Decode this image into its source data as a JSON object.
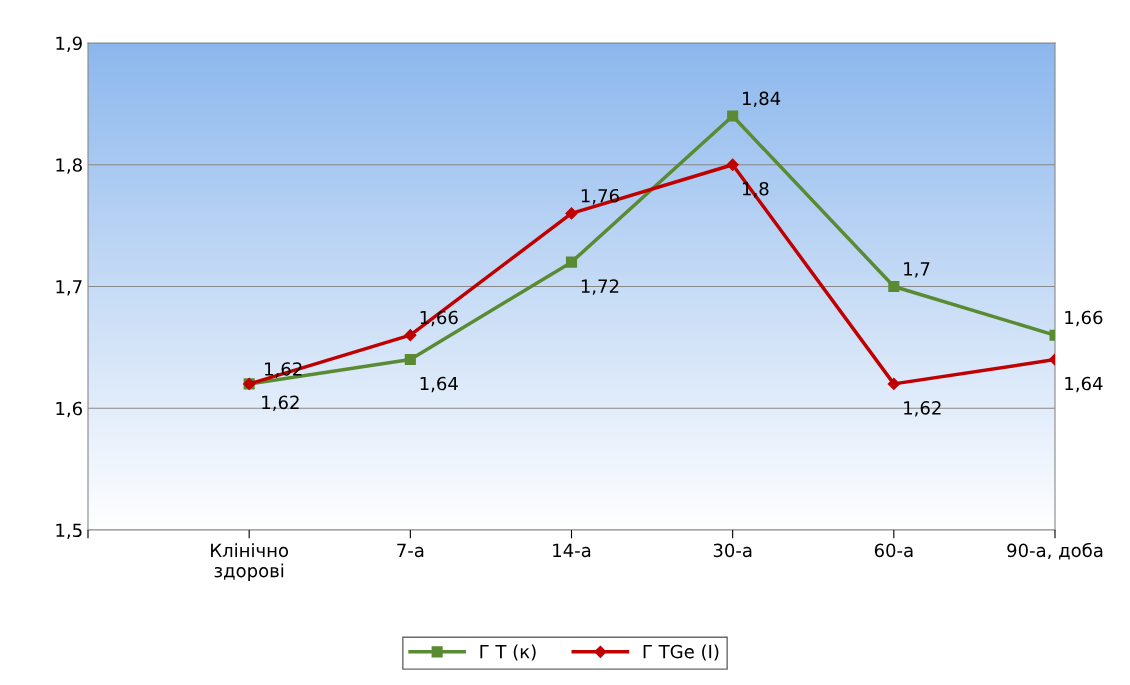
{
  "chart_data": {
    "type": "line",
    "categories": [
      null,
      "Клінічно\nздорові",
      "7-а",
      "14-а",
      "30-а",
      "60-а",
      "90-а, доба"
    ],
    "series": [
      {
        "name": "Г T (к)",
        "color": "#5a8a32",
        "marker": "square",
        "values": [
          null,
          1.62,
          1.64,
          1.72,
          1.84,
          1.7,
          1.66
        ],
        "value_labels": [
          null,
          "1,62",
          "1,64",
          "1,72",
          "1,84",
          "1,7",
          "1,66"
        ]
      },
      {
        "name": "Г TGe (I)",
        "color": "#c00000",
        "marker": "diamond",
        "values": [
          null,
          1.62,
          1.66,
          1.76,
          1.8,
          1.62,
          1.64
        ],
        "value_labels": [
          null,
          "1,62",
          "1,66",
          "1,76",
          "1,8",
          "1,62",
          "1,64"
        ]
      }
    ],
    "ylim": [
      1.5,
      1.9
    ],
    "yticks": [
      {
        "value": 1.5,
        "label": "1,5"
      },
      {
        "value": 1.6,
        "label": "1,6"
      },
      {
        "value": 1.7,
        "label": "1,7"
      },
      {
        "value": 1.8,
        "label": "1,8"
      },
      {
        "value": 1.9,
        "label": "1,9"
      }
    ],
    "grid": "y",
    "legend": "bottom",
    "line_style": "solid"
  }
}
